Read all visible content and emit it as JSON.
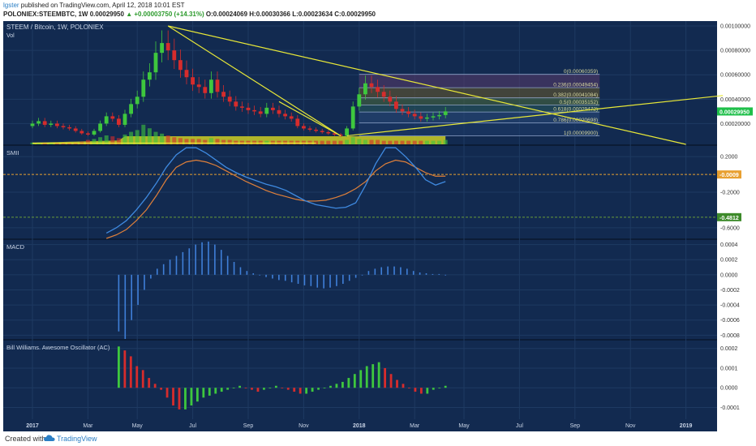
{
  "header": {
    "user": "lgster",
    "published": " published on TradingView.com, April 12, 2018 10:01 EST",
    "symbol": "POLONIEX:STEEMBTC, 1W",
    "ohlc_open": "0.00029950",
    "change_text": "▲ +0.00003750 (+14.31%)",
    "ohlc_o": "O:0.00024069",
    "ohlc_h": "H:0.00030366",
    "ohlc_l": "L:0.00023634",
    "ohlc_c": "C:0.00029950"
  },
  "footer": {
    "created": "Created with",
    "brand": "TradingView"
  },
  "colors": {
    "background": "#122a50",
    "up": "#3ec73e",
    "down": "#d62c2c",
    "trendline": "#e8e838",
    "smi_line": "#3f8ae0",
    "smi_signal": "#e0803a",
    "macd_bar": "#3f7fd8",
    "grid": "#1e3a62",
    "price_tag": "#1fbf4a"
  },
  "panes": {
    "price_title": "STEEM / Bitcoin, 1W, POLONIEX",
    "volume_label": "Vol",
    "smi_title": "SMII",
    "macd_title": "MACD",
    "ac_title": "Bill Williams. Awesome Oscillator (AC)"
  },
  "chart_data": {
    "type": "candlestick",
    "symbol": "STEEM/BTC",
    "interval": "1W",
    "exchange": "POLONIEX",
    "x_axis_ticks": [
      "2017",
      "Mar",
      "May",
      "Jul",
      "Sep",
      "Nov",
      "2018",
      "Mar",
      "May",
      "Jul",
      "Sep",
      "Nov",
      "2019"
    ],
    "price_axis": {
      "ticks": [
        "0.00100000",
        "0.00080000",
        "0.00060000",
        "0.00040000",
        "0.00020000"
      ],
      "ylim": [
        3e-05,
        0.00104
      ],
      "last_price": "0.00029950"
    },
    "fibonacci": [
      {
        "level": "0",
        "value": "0.00060359"
      },
      {
        "level": "0.236",
        "value": "0.00049454"
      },
      {
        "level": "0.382",
        "value": "0.00041084"
      },
      {
        "level": "0.5",
        "value": "0.00035152"
      },
      {
        "level": "0.618",
        "value": "0.00029472"
      },
      {
        "level": "0.786",
        "value": "0.00020698"
      },
      {
        "level": "1",
        "value": "0.00009900"
      }
    ],
    "smi_axis": {
      "ticks": [
        "0.2000",
        "-0.2000",
        "-0.6000"
      ],
      "ylim": [
        -0.72,
        0.32
      ],
      "marker_orange": "-0.0009",
      "marker_green": "-0.4812"
    },
    "macd_axis": {
      "ticks": [
        "0.0004",
        "0.0002",
        "0.0000",
        "-0.0002",
        "-0.0004",
        "-0.0006",
        "-0.0008"
      ],
      "ylim": [
        -0.00085,
        0.00046
      ]
    },
    "ac_axis": {
      "ticks": [
        "0.0002",
        "0.0001",
        "0.0000",
        "-0.0001"
      ],
      "ylim": [
        -0.00016,
        0.00024
      ]
    },
    "weeks": [
      "2016-12-26",
      "2017-01-02",
      "2017-01-09",
      "2017-01-16",
      "2017-01-23",
      "2017-01-30",
      "2017-02-06",
      "2017-02-13",
      "2017-02-20",
      "2017-02-27",
      "2017-03-06",
      "2017-03-13",
      "2017-03-20",
      "2017-03-27",
      "2017-04-03",
      "2017-04-10",
      "2017-04-17",
      "2017-04-24",
      "2017-05-01",
      "2017-05-08",
      "2017-05-15",
      "2017-05-22",
      "2017-05-29",
      "2017-06-05",
      "2017-06-12",
      "2017-06-19",
      "2017-06-26",
      "2017-07-03",
      "2017-07-10",
      "2017-07-17",
      "2017-07-24",
      "2017-07-31",
      "2017-08-07",
      "2017-08-14",
      "2017-08-21",
      "2017-08-28",
      "2017-09-04",
      "2017-09-11",
      "2017-09-18",
      "2017-09-25",
      "2017-10-02",
      "2017-10-09",
      "2017-10-16",
      "2017-10-23",
      "2017-10-30",
      "2017-11-06",
      "2017-11-13",
      "2017-11-20",
      "2017-11-27",
      "2017-12-04",
      "2017-12-11",
      "2017-12-18",
      "2017-12-25",
      "2018-01-01",
      "2018-01-08",
      "2018-01-15",
      "2018-01-22",
      "2018-01-29",
      "2018-02-05",
      "2018-02-12",
      "2018-02-19",
      "2018-02-26",
      "2018-03-05",
      "2018-03-12",
      "2018-03-19",
      "2018-03-26",
      "2018-04-02",
      "2018-04-09"
    ],
    "candles_close": [
      0.0002,
      0.00022,
      0.00019,
      0.0002,
      0.00018,
      0.00017,
      0.00016,
      0.00014,
      0.00012,
      0.00011,
      0.00014,
      0.0002,
      0.00026,
      0.00024,
      0.00019,
      0.00028,
      0.00036,
      0.00042,
      0.00056,
      0.00062,
      0.00078,
      0.00086,
      0.0008,
      0.00072,
      0.00064,
      0.00058,
      0.00052,
      0.0005,
      0.00045,
      0.00056,
      0.00046,
      0.00042,
      0.00038,
      0.00034,
      0.00033,
      0.00031,
      0.0003,
      0.00028,
      0.00033,
      0.00031,
      0.00028,
      0.00026,
      0.00024,
      0.00018,
      0.00016,
      0.00015,
      0.00014,
      0.00013,
      0.00012,
      0.00011,
      0.0001,
      0.00016,
      0.00034,
      0.00044,
      0.00053,
      0.0005,
      0.00046,
      0.00042,
      0.00038,
      0.00032,
      0.0003,
      0.00028,
      0.00026,
      0.00024,
      0.00025,
      0.00026,
      0.00027,
      0.0003
    ],
    "smi_line": [
      -0.66,
      -0.6,
      -0.52,
      -0.4,
      -0.26,
      -0.1,
      0.08,
      0.22,
      0.3,
      0.3,
      0.24,
      0.16,
      0.08,
      0.02,
      -0.03,
      -0.07,
      -0.11,
      -0.14,
      -0.18,
      -0.24,
      -0.3,
      -0.34,
      -0.36,
      -0.38,
      -0.37,
      -0.32,
      -0.12,
      0.12,
      0.3,
      0.3,
      0.2,
      0.08,
      -0.06,
      -0.12,
      -0.08
    ],
    "smi_signal": [
      -0.72,
      -0.68,
      -0.62,
      -0.52,
      -0.4,
      -0.24,
      -0.06,
      0.08,
      0.14,
      0.16,
      0.14,
      0.1,
      0.04,
      -0.02,
      -0.08,
      -0.13,
      -0.18,
      -0.22,
      -0.25,
      -0.28,
      -0.3,
      -0.3,
      -0.29,
      -0.26,
      -0.22,
      -0.16,
      -0.08,
      0.04,
      0.12,
      0.16,
      0.14,
      0.08,
      0.02,
      -0.02,
      -0.02
    ],
    "macd_hist": [
      -0.00075,
      -0.00085,
      -0.0006,
      -0.0004,
      -0.0002,
      -5e-05,
      8e-05,
      0.00014,
      0.0002,
      0.00025,
      0.0003,
      0.00035,
      0.0004,
      0.00043,
      0.00044,
      0.0004,
      0.00033,
      0.00025,
      0.00017,
      0.0001,
      5e-05,
      2e-05,
      0.0,
      -3e-05,
      -5e-05,
      -7e-05,
      -8e-05,
      -0.0001,
      -0.00012,
      -0.00014,
      -0.00015,
      -0.00017,
      -0.00018,
      -0.00017,
      -0.00015,
      -0.00012,
      -8e-05,
      -4e-05,
      0.0,
      5e-05,
      8e-05,
      0.0001,
      0.00011,
      0.00011,
      0.0001,
      8e-05,
      5e-05,
      3e-05,
      2e-05,
      1e-05,
      1e-05,
      0.0
    ],
    "ac_values": [
      0.00021,
      0.00019,
      0.00016,
      0.00011,
      9e-05,
      5e-05,
      2e-05,
      -1e-05,
      -5e-05,
      -9e-05,
      -0.00011,
      -0.00011,
      -9e-05,
      -7e-05,
      -5e-05,
      -4e-05,
      -3e-05,
      -2e-05,
      -1e-05,
      0.0,
      1e-05,
      0.0,
      -1e-05,
      -2e-05,
      -1e-05,
      0.0,
      1e-05,
      0.0,
      -1e-05,
      -2e-05,
      -3e-05,
      -3e-05,
      -2e-05,
      -1e-05,
      0.0,
      1e-05,
      2e-05,
      3e-05,
      5e-05,
      7e-05,
      9e-05,
      0.00011,
      0.00012,
      0.00013,
      0.0001,
      7e-05,
      4e-05,
      2e-05,
      0.0,
      -2e-05,
      -3e-05,
      -3e-05,
      -1e-05,
      0.0,
      1e-05
    ]
  }
}
